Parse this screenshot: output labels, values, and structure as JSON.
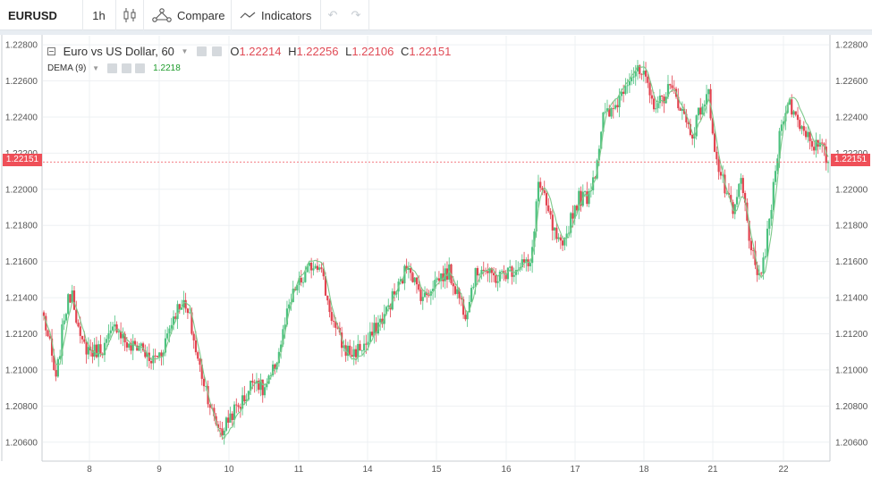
{
  "toolbar": {
    "symbol": "EURUSD",
    "interval": "1h",
    "chart_type_icon": "candles-icon",
    "compare_label": "Compare",
    "indicators_label": "Indicators",
    "undo_icon": "↶",
    "redo_icon": "↷"
  },
  "legend": {
    "title": "Euro vs US Dollar, 60",
    "o_key": "O",
    "o": "1.22214",
    "h_key": "H",
    "h": "1.22256",
    "l_key": "L",
    "l": "1.22106",
    "c_key": "C",
    "c": "1.22151",
    "study": "DEMA (9)",
    "study_value": "1.2218"
  },
  "last_price_label": "1.22151",
  "colors": {
    "up": "#4bc17e",
    "down": "#e2434f",
    "dema": "#7dc98a",
    "price_line": "#ef4f58",
    "grid": "#eef0f3"
  },
  "chart_data": {
    "type": "candlestick",
    "series": [
      {
        "name": "EURUSD"
      },
      {
        "name": "DEMA (9)"
      }
    ],
    "ylim": [
      1.205,
      1.2285
    ],
    "yticks": [
      "1.22800",
      "1.22600",
      "1.22400",
      "1.22200",
      "1.22000",
      "1.21800",
      "1.21600",
      "1.21400",
      "1.21200",
      "1.21000",
      "1.20800",
      "1.20600"
    ],
    "xticks": [
      "8",
      "9",
      "10",
      "11",
      "14",
      "15",
      "16",
      "17",
      "18",
      "21",
      "22"
    ],
    "last_price": 1.22151,
    "grid": true,
    "keypoints": [
      [
        0,
        1.2129
      ],
      [
        3,
        1.2113
      ],
      [
        6,
        1.2093
      ],
      [
        10,
        1.213
      ],
      [
        14,
        1.2145
      ],
      [
        18,
        1.2115
      ],
      [
        24,
        1.211
      ],
      [
        30,
        1.2113
      ],
      [
        36,
        1.2125
      ],
      [
        42,
        1.2112
      ],
      [
        48,
        1.2114
      ],
      [
        52,
        1.2104
      ],
      [
        58,
        1.211
      ],
      [
        64,
        1.213
      ],
      [
        68,
        1.2138
      ],
      [
        72,
        1.2128
      ],
      [
        76,
        1.2105
      ],
      [
        80,
        1.209
      ],
      [
        84,
        1.2072
      ],
      [
        88,
        1.2066
      ],
      [
        92,
        1.2075
      ],
      [
        96,
        1.208
      ],
      [
        100,
        1.2086
      ],
      [
        104,
        1.2097
      ],
      [
        108,
        1.2088
      ],
      [
        112,
        1.2095
      ],
      [
        116,
        1.211
      ],
      [
        120,
        1.213
      ],
      [
        124,
        1.2145
      ],
      [
        128,
        1.215
      ],
      [
        132,
        1.2158
      ],
      [
        136,
        1.216
      ],
      [
        140,
        1.2138
      ],
      [
        144,
        1.2122
      ],
      [
        148,
        1.2112
      ],
      [
        152,
        1.2109
      ],
      [
        156,
        1.2112
      ],
      [
        160,
        1.2115
      ],
      [
        164,
        1.2124
      ],
      [
        168,
        1.213
      ],
      [
        172,
        1.214
      ],
      [
        176,
        1.2148
      ],
      [
        180,
        1.216
      ],
      [
        184,
        1.2145
      ],
      [
        188,
        1.214
      ],
      [
        192,
        1.2148
      ],
      [
        196,
        1.2152
      ],
      [
        200,
        1.2154
      ],
      [
        204,
        1.2143
      ],
      [
        208,
        1.2132
      ],
      [
        212,
        1.215
      ],
      [
        216,
        1.2158
      ],
      [
        220,
        1.2152
      ],
      [
        224,
        1.2151
      ],
      [
        228,
        1.2154
      ],
      [
        232,
        1.2156
      ],
      [
        236,
        1.216
      ],
      [
        240,
        1.2156
      ],
      [
        244,
        1.2204
      ],
      [
        248,
        1.219
      ],
      [
        252,
        1.2175
      ],
      [
        256,
        1.2165
      ],
      [
        260,
        1.2185
      ],
      [
        264,
        1.2195
      ],
      [
        268,
        1.2196
      ],
      [
        272,
        1.221
      ],
      [
        276,
        1.224
      ],
      [
        280,
        1.2242
      ],
      [
        284,
        1.2251
      ],
      [
        288,
        1.2262
      ],
      [
        292,
        1.2265
      ],
      [
        296,
        1.2262
      ],
      [
        300,
        1.2248
      ],
      [
        304,
        1.2248
      ],
      [
        308,
        1.2256
      ],
      [
        312,
        1.2252
      ],
      [
        316,
        1.224
      ],
      [
        320,
        1.223
      ],
      [
        324,
        1.2245
      ],
      [
        328,
        1.2252
      ],
      [
        332,
        1.2215
      ],
      [
        336,
        1.22
      ],
      [
        340,
        1.2185
      ],
      [
        344,
        1.2205
      ],
      [
        348,
        1.2175
      ],
      [
        352,
        1.2148
      ],
      [
        356,
        1.2165
      ],
      [
        360,
        1.22
      ],
      [
        364,
        1.224
      ],
      [
        368,
        1.2247
      ],
      [
        372,
        1.2238
      ],
      [
        376,
        1.2232
      ],
      [
        380,
        1.2225
      ],
      [
        384,
        1.2222
      ],
      [
        387,
        1.2215
      ]
    ]
  }
}
